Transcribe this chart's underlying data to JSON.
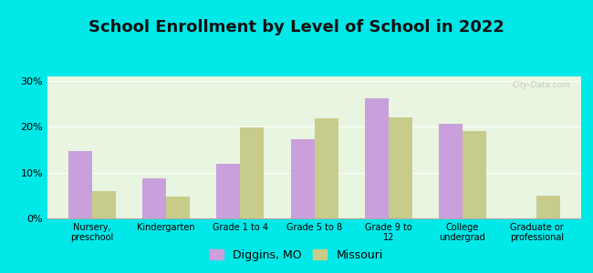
{
  "title": "School Enrollment by Level of School in 2022",
  "categories": [
    "Nursery,\npreschool",
    "Kindergarten",
    "Grade 1 to 4",
    "Grade 5 to 8",
    "Grade 9 to\n12",
    "College\nundergrad",
    "Graduate or\nprofessional"
  ],
  "diggins": [
    14.8,
    8.8,
    12.0,
    17.2,
    26.2,
    20.7,
    0.0
  ],
  "missouri": [
    6.0,
    4.8,
    19.9,
    21.9,
    22.0,
    19.0,
    5.0
  ],
  "diggins_color": "#c9a0dc",
  "missouri_color": "#c8cc8a",
  "background_outer": "#00e8e8",
  "background_inner": "#e8f5e0",
  "yticks": [
    0,
    10,
    20,
    30
  ],
  "ylim": [
    0,
    31
  ],
  "legend_diggins": "Diggins, MO",
  "legend_missouri": "Missouri",
  "title_fontsize": 13,
  "watermark": "City-Data.com"
}
